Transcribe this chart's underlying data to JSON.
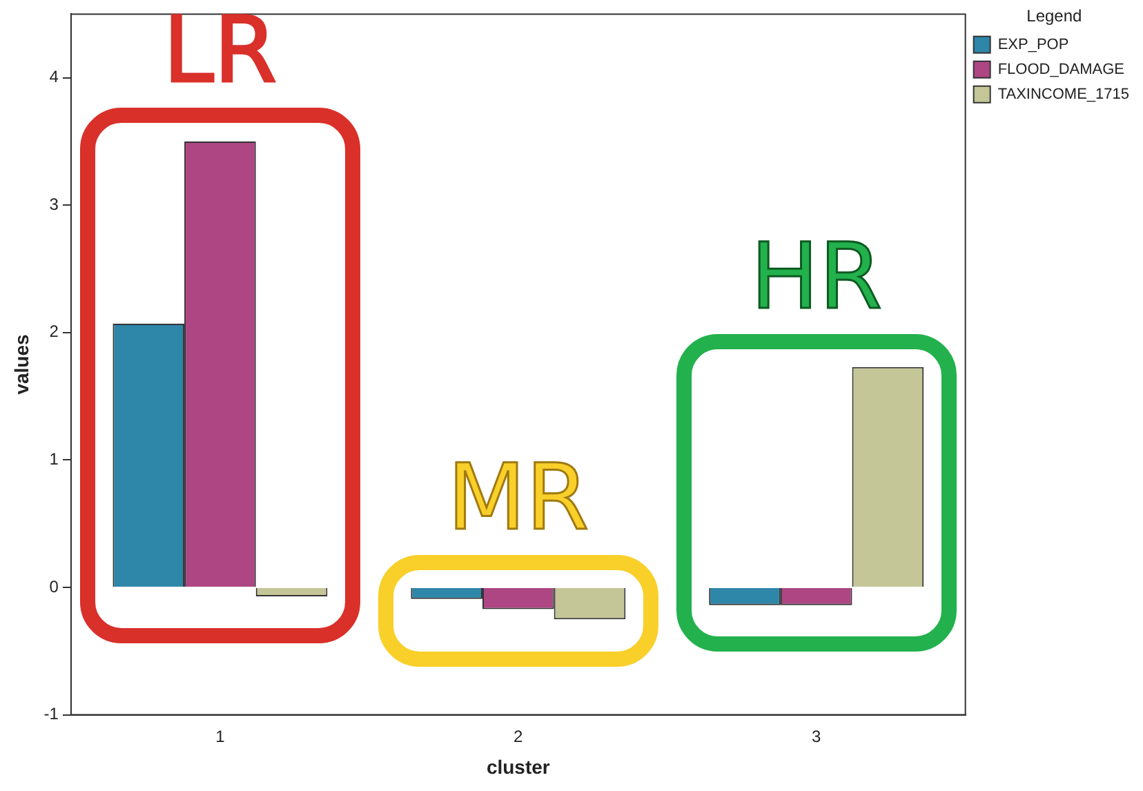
{
  "chart_data": {
    "type": "bar",
    "xlabel": "cluster",
    "ylabel": "values",
    "legend_title": "Legend",
    "categories": [
      "1",
      "2",
      "3"
    ],
    "series": [
      {
        "name": "EXP_POP",
        "color": "#2e86a8",
        "values": [
          2.07,
          -0.09,
          -0.14
        ]
      },
      {
        "name": "FLOOD_DAMAGE",
        "color": "#ad4683",
        "values": [
          3.5,
          -0.17,
          -0.14
        ]
      },
      {
        "name": "TAXINCOME_1715",
        "color": "#c4c697",
        "values": [
          -0.07,
          -0.25,
          1.73
        ]
      }
    ],
    "ylim": [
      -1,
      4.5
    ],
    "yticks": [
      -1,
      0,
      1,
      2,
      3,
      4
    ],
    "grid": false,
    "legend": "top right",
    "annotations": [
      "LR",
      "MR",
      "HR"
    ]
  }
}
